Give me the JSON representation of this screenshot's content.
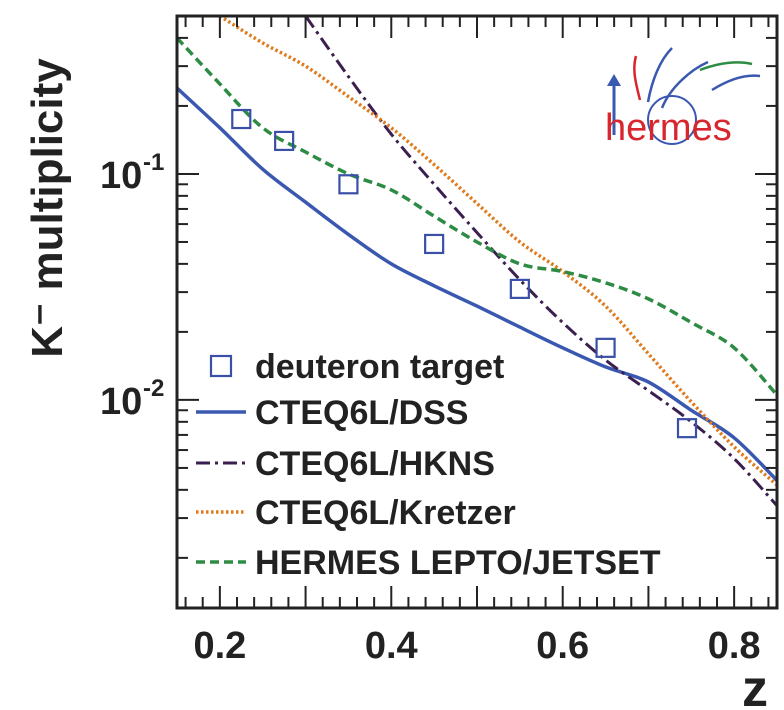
{
  "chart_data": {
    "type": "line",
    "xlabel": "z",
    "ylabel": "K⁻ multiplicity",
    "y_scale": "log",
    "xlim": [
      0.15,
      0.85
    ],
    "ylim": [
      0.0012,
      0.5
    ],
    "x_ticks": [
      0.2,
      0.4,
      0.6,
      0.8
    ],
    "x_tick_labels": [
      "0.2",
      "0.4",
      "0.6",
      "0.8"
    ],
    "y_tick_labels": [
      {
        "value": 0.1,
        "base": "10",
        "exp": "-1"
      },
      {
        "value": 0.01,
        "base": "10",
        "exp": "-2"
      }
    ],
    "grid": false,
    "legend_position": "bottom-left",
    "logo_text": "hermes",
    "series": [
      {
        "name": "deuteron target",
        "style": "markers",
        "marker": "open-square",
        "color": "#3a4fa8",
        "x": [
          0.225,
          0.275,
          0.35,
          0.45,
          0.55,
          0.65,
          0.745
        ],
        "y": [
          0.175,
          0.14,
          0.09,
          0.049,
          0.031,
          0.017,
          0.0075
        ]
      },
      {
        "name": "CTEQ6L/DSS",
        "style": "solid",
        "color": "#3a58b0",
        "x": [
          0.15,
          0.2,
          0.25,
          0.3,
          0.35,
          0.4,
          0.45,
          0.5,
          0.55,
          0.6,
          0.65,
          0.7,
          0.75,
          0.8,
          0.85
        ],
        "y": [
          0.24,
          0.16,
          0.105,
          0.075,
          0.054,
          0.04,
          0.032,
          0.026,
          0.021,
          0.017,
          0.014,
          0.012,
          0.009,
          0.0068,
          0.0044
        ]
      },
      {
        "name": "CTEQ6L/HKNS",
        "style": "dash-dot",
        "color": "#3a1f4f",
        "x": [
          0.3,
          0.35,
          0.4,
          0.45,
          0.5,
          0.55,
          0.6,
          0.65,
          0.7,
          0.75,
          0.8,
          0.85
        ],
        "y": [
          0.5,
          0.27,
          0.15,
          0.09,
          0.055,
          0.034,
          0.022,
          0.015,
          0.011,
          0.008,
          0.0055,
          0.0034
        ]
      },
      {
        "name": "CTEQ6L/Kretzer",
        "style": "dotted",
        "color": "#e07a1c",
        "x": [
          0.2,
          0.25,
          0.3,
          0.35,
          0.4,
          0.45,
          0.5,
          0.55,
          0.6,
          0.65,
          0.7,
          0.75,
          0.8,
          0.85
        ],
        "y": [
          0.5,
          0.38,
          0.3,
          0.22,
          0.16,
          0.11,
          0.074,
          0.05,
          0.037,
          0.026,
          0.016,
          0.0098,
          0.0062,
          0.0042
        ]
      },
      {
        "name": "HERMES LEPTO/JETSET",
        "style": "dashed",
        "color": "#2e8b44",
        "x": [
          0.15,
          0.2,
          0.25,
          0.3,
          0.35,
          0.4,
          0.45,
          0.5,
          0.55,
          0.6,
          0.65,
          0.7,
          0.75,
          0.8,
          0.85
        ],
        "y": [
          0.4,
          0.25,
          0.16,
          0.125,
          0.1,
          0.085,
          0.065,
          0.05,
          0.04,
          0.037,
          0.033,
          0.028,
          0.022,
          0.017,
          0.0105
        ]
      }
    ]
  }
}
